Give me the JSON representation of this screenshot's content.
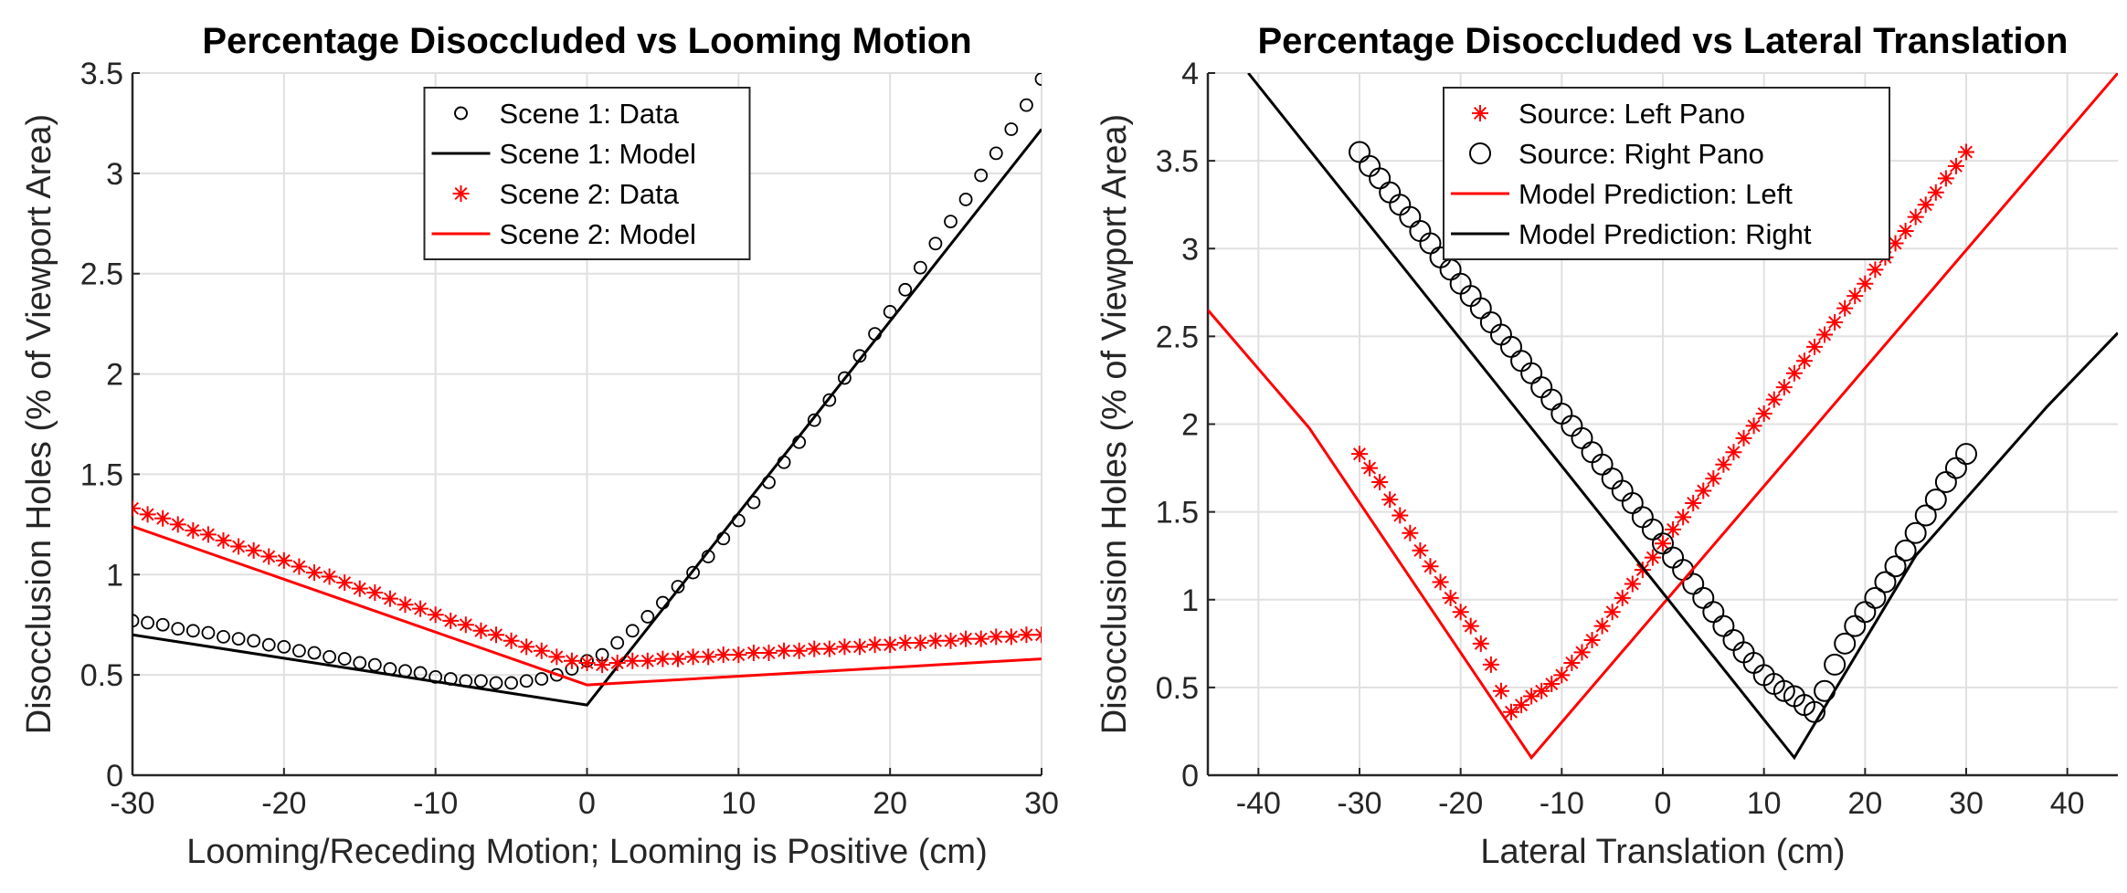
{
  "chart_data": [
    {
      "type": "line",
      "title": "Percentage Disoccluded vs Looming Motion",
      "xlabel": "Looming/Receding Motion; Looming is Positive (cm)",
      "ylabel": "Disocclusion Holes (% of Viewport Area)",
      "xlim": [
        -30,
        30
      ],
      "xticks": [
        -30,
        -20,
        -10,
        0,
        10,
        20,
        30
      ],
      "ylim": [
        0,
        3.5
      ],
      "yticks": [
        0,
        0.5,
        1,
        1.5,
        2,
        2.5,
        3,
        3.5
      ],
      "grid": true,
      "legend": "top",
      "series": [
        {
          "name": "Scene 1: Data",
          "color": "#000000",
          "marker": "o",
          "x": [
            -30,
            -29,
            -28,
            -27,
            -26,
            -25,
            -24,
            -23,
            -22,
            -21,
            -20,
            -19,
            -18,
            -17,
            -16,
            -15,
            -14,
            -13,
            -12,
            -11,
            -10,
            -9,
            -8,
            -7,
            -6,
            -5,
            -4,
            -3,
            -2,
            -1,
            0,
            1,
            2,
            3,
            4,
            5,
            6,
            7,
            8,
            9,
            10,
            11,
            12,
            13,
            14,
            15,
            16,
            17,
            18,
            19,
            20,
            21,
            22,
            23,
            24,
            25,
            26,
            27,
            28,
            29,
            30
          ],
          "values": [
            0.77,
            0.76,
            0.75,
            0.73,
            0.72,
            0.71,
            0.69,
            0.68,
            0.67,
            0.65,
            0.64,
            0.62,
            0.61,
            0.59,
            0.58,
            0.56,
            0.55,
            0.53,
            0.52,
            0.51,
            0.49,
            0.48,
            0.47,
            0.47,
            0.46,
            0.46,
            0.47,
            0.48,
            0.5,
            0.53,
            0.57,
            0.6,
            0.66,
            0.72,
            0.79,
            0.86,
            0.94,
            1.01,
            1.09,
            1.18,
            1.27,
            1.36,
            1.46,
            1.56,
            1.66,
            1.77,
            1.87,
            1.98,
            2.09,
            2.2,
            2.31,
            2.42,
            2.53,
            2.65,
            2.76,
            2.87,
            2.99,
            3.1,
            3.22,
            3.34,
            3.47
          ]
        },
        {
          "name": "Scene 1: Model",
          "color": "#000000",
          "marker": "line",
          "x": [
            -30,
            0,
            30
          ],
          "values": [
            0.7,
            0.35,
            3.22
          ]
        },
        {
          "name": "Scene 2: Data",
          "color": "#ff0000",
          "marker": "*",
          "x": [
            -30,
            -29,
            -28,
            -27,
            -26,
            -25,
            -24,
            -23,
            -22,
            -21,
            -20,
            -19,
            -18,
            -17,
            -16,
            -15,
            -14,
            -13,
            -12,
            -11,
            -10,
            -9,
            -8,
            -7,
            -6,
            -5,
            -4,
            -3,
            -2,
            -1,
            0,
            1,
            2,
            3,
            4,
            5,
            6,
            7,
            8,
            9,
            10,
            11,
            12,
            13,
            14,
            15,
            16,
            17,
            18,
            19,
            20,
            21,
            22,
            23,
            24,
            25,
            26,
            27,
            28,
            29,
            30
          ],
          "values": [
            1.33,
            1.3,
            1.28,
            1.25,
            1.22,
            1.2,
            1.17,
            1.14,
            1.12,
            1.09,
            1.07,
            1.04,
            1.01,
            0.99,
            0.96,
            0.93,
            0.91,
            0.88,
            0.85,
            0.83,
            0.8,
            0.77,
            0.75,
            0.72,
            0.7,
            0.67,
            0.64,
            0.62,
            0.59,
            0.57,
            0.56,
            0.55,
            0.56,
            0.57,
            0.57,
            0.58,
            0.58,
            0.59,
            0.59,
            0.6,
            0.6,
            0.61,
            0.61,
            0.62,
            0.62,
            0.63,
            0.63,
            0.64,
            0.64,
            0.65,
            0.65,
            0.66,
            0.66,
            0.67,
            0.67,
            0.68,
            0.68,
            0.69,
            0.69,
            0.7,
            0.7
          ]
        },
        {
          "name": "Scene 2: Model",
          "color": "#ff0000",
          "marker": "line",
          "x": [
            -30,
            0,
            30
          ],
          "values": [
            1.24,
            0.45,
            0.58
          ]
        }
      ]
    },
    {
      "type": "line",
      "title": "Percentage Disoccluded vs Lateral Translation",
      "xlabel": "Lateral Translation (cm)",
      "ylabel": "Disocclusion Holes (% of Viewport Area)",
      "xlim": [
        -45,
        45
      ],
      "xticks": [
        -40,
        -30,
        -20,
        -10,
        0,
        10,
        20,
        30,
        40
      ],
      "ylim": [
        0,
        4
      ],
      "yticks": [
        0,
        0.5,
        1,
        1.5,
        2,
        2.5,
        3,
        3.5,
        4
      ],
      "grid": true,
      "legend": "top",
      "series": [
        {
          "name": "Source: Left Pano",
          "color": "#ff0000",
          "marker": "*",
          "x": [
            -30,
            -29,
            -28,
            -27,
            -26,
            -25,
            -24,
            -23,
            -22,
            -21,
            -20,
            -19,
            -18,
            -17,
            -16,
            -15,
            -14,
            -13,
            -12,
            -11,
            -10,
            -9,
            -8,
            -7,
            -6,
            -5,
            -4,
            -3,
            -2,
            -1,
            0,
            1,
            2,
            3,
            4,
            5,
            6,
            7,
            8,
            9,
            10,
            11,
            12,
            13,
            14,
            15,
            16,
            17,
            18,
            19,
            20,
            21,
            22,
            23,
            24,
            25,
            26,
            27,
            28,
            29,
            30
          ],
          "values": [
            1.83,
            1.75,
            1.67,
            1.57,
            1.48,
            1.38,
            1.28,
            1.19,
            1.1,
            1.01,
            0.93,
            0.85,
            0.75,
            0.63,
            0.48,
            0.36,
            0.4,
            0.45,
            0.48,
            0.52,
            0.57,
            0.64,
            0.7,
            0.77,
            0.85,
            0.93,
            1.01,
            1.09,
            1.17,
            1.24,
            1.32,
            1.4,
            1.47,
            1.55,
            1.62,
            1.69,
            1.77,
            1.84,
            1.92,
            1.99,
            2.06,
            2.14,
            2.21,
            2.29,
            2.36,
            2.44,
            2.51,
            2.58,
            2.66,
            2.73,
            2.8,
            2.88,
            2.95,
            3.03,
            3.1,
            3.18,
            3.25,
            3.32,
            3.4,
            3.47,
            3.55
          ]
        },
        {
          "name": "Source: Right Pano",
          "color": "#000000",
          "marker": "O",
          "x": [
            -30,
            -29,
            -28,
            -27,
            -26,
            -25,
            -24,
            -23,
            -22,
            -21,
            -20,
            -19,
            -18,
            -17,
            -16,
            -15,
            -14,
            -13,
            -12,
            -11,
            -10,
            -9,
            -8,
            -7,
            -6,
            -5,
            -4,
            -3,
            -2,
            -1,
            0,
            1,
            2,
            3,
            4,
            5,
            6,
            7,
            8,
            9,
            10,
            11,
            12,
            13,
            14,
            15,
            16,
            17,
            18,
            19,
            20,
            21,
            22,
            23,
            24,
            25,
            26,
            27,
            28,
            29,
            30
          ],
          "values": [
            3.55,
            3.47,
            3.4,
            3.32,
            3.25,
            3.18,
            3.1,
            3.03,
            2.95,
            2.88,
            2.8,
            2.73,
            2.66,
            2.58,
            2.51,
            2.44,
            2.36,
            2.29,
            2.21,
            2.14,
            2.06,
            1.99,
            1.92,
            1.84,
            1.77,
            1.69,
            1.62,
            1.55,
            1.47,
            1.4,
            1.32,
            1.24,
            1.17,
            1.09,
            1.01,
            0.93,
            0.85,
            0.77,
            0.7,
            0.64,
            0.57,
            0.52,
            0.48,
            0.45,
            0.4,
            0.36,
            0.48,
            0.63,
            0.75,
            0.85,
            0.93,
            1.01,
            1.1,
            1.19,
            1.28,
            1.38,
            1.48,
            1.57,
            1.67,
            1.75,
            1.83
          ]
        },
        {
          "name": "Model Prediction: Left",
          "color": "#ff0000",
          "marker": "line",
          "x": [
            -45,
            -35,
            -13,
            45
          ],
          "values": [
            2.65,
            1.98,
            0.1,
            4
          ]
        },
        {
          "name": "Model Prediction: Right",
          "color": "#000000",
          "marker": "line",
          "x": [
            -41,
            13,
            25,
            38,
            45
          ],
          "values": [
            4,
            0.1,
            1.25,
            2.1,
            2.52
          ]
        }
      ]
    }
  ]
}
